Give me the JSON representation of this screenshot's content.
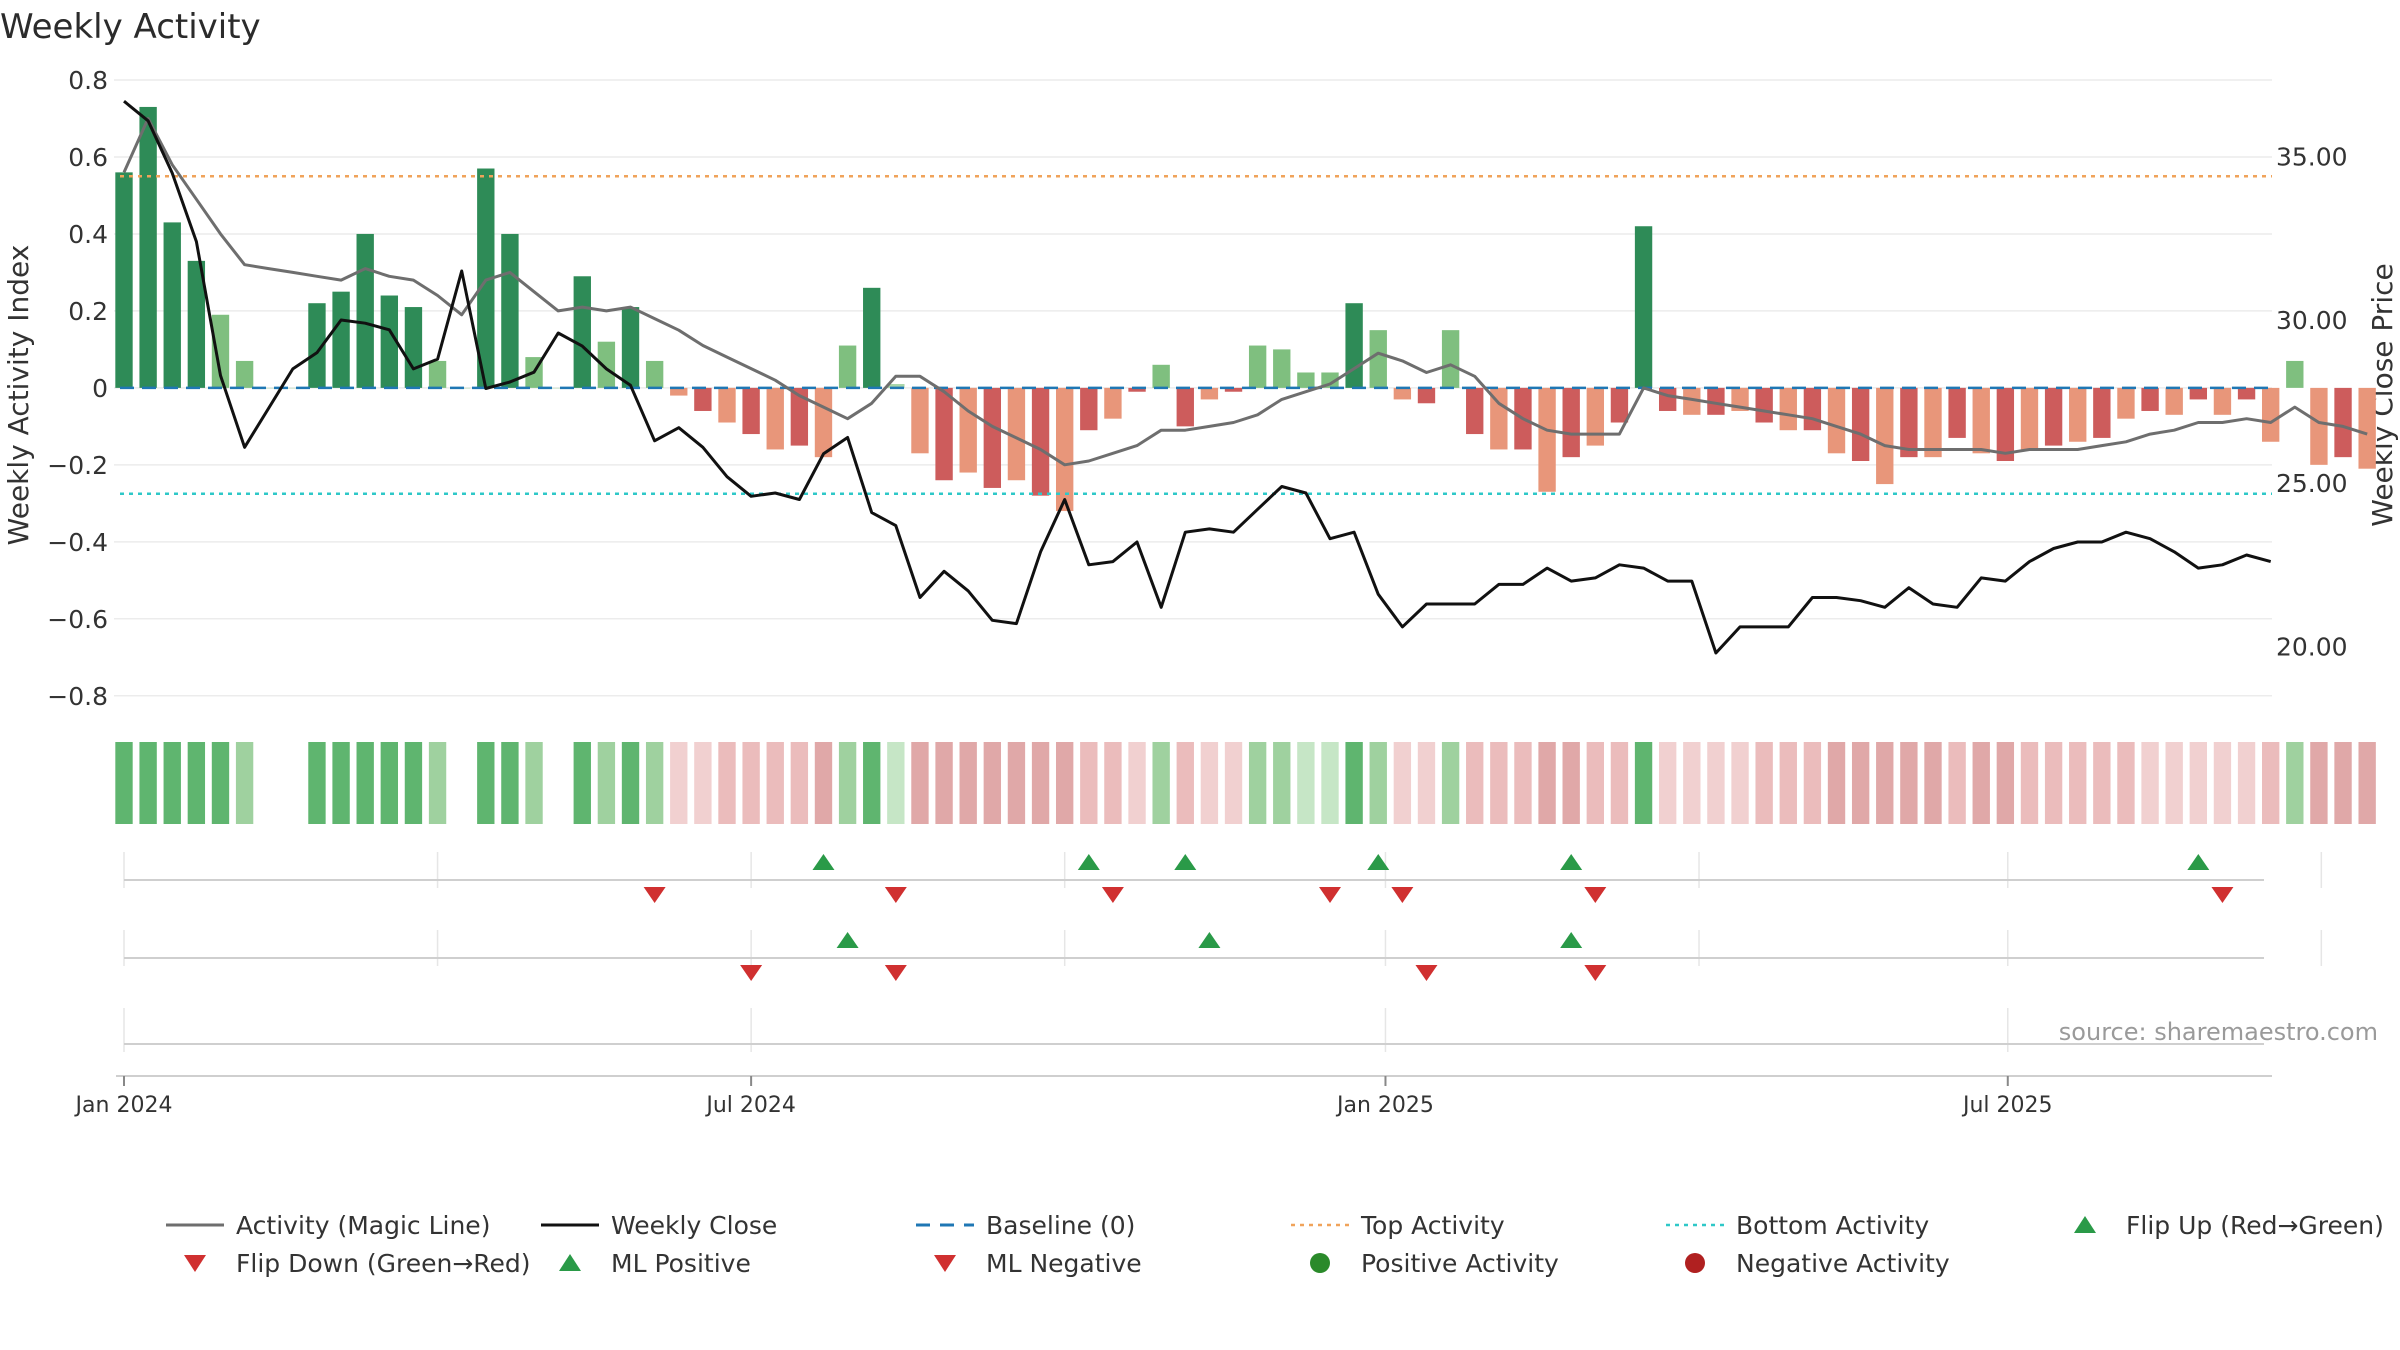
{
  "chart_data": {
    "type": "bar",
    "title": "Weekly Activity",
    "ylabel": "Weekly Activity Index",
    "y2label": "Weekly Close Price",
    "xlabel": "",
    "ylim": [
      -0.85,
      0.8
    ],
    "y2lim": [
      17.9,
      37.35
    ],
    "yticks": [
      0.8,
      0.6,
      0.4,
      0.2,
      0,
      -0.2,
      -0.4,
      -0.6,
      -0.8
    ],
    "ytick_labels": [
      "0.8",
      "0.6",
      "0.4",
      "0.2",
      "0",
      "−0.2",
      "−0.4",
      "−0.6",
      "−0.8"
    ],
    "y2ticks": [
      35,
      30,
      25,
      20
    ],
    "y2tick_labels": [
      "35.00",
      "30.00",
      "25.00",
      "20.00"
    ],
    "x_start": "2024-01-01",
    "xticks": [
      {
        "week": 0,
        "label": "Jan 2024"
      },
      {
        "week": 26,
        "label": "Jul 2024"
      },
      {
        "week": 52.3,
        "label": "Jan 2025"
      },
      {
        "week": 78.1,
        "label": "Jul 2025"
      }
    ],
    "minor_grid_weeks": [
      13,
      39,
      65.3,
      91.1
    ],
    "series": [
      {
        "name": "Activity",
        "type": "bar",
        "values": [
          0.56,
          0.73,
          0.43,
          0.33,
          0.19,
          0.07,
          0,
          0,
          0.22,
          0.25,
          0.4,
          0.24,
          0.21,
          0.07,
          0,
          0.57,
          0.4,
          0.08,
          0,
          0.29,
          0.12,
          0.21,
          0.07,
          -0.02,
          -0.06,
          -0.09,
          -0.12,
          -0.16,
          -0.15,
          -0.18,
          0.11,
          0.26,
          0.01,
          -0.17,
          -0.24,
          -0.22,
          -0.26,
          -0.24,
          -0.28,
          -0.32,
          -0.11,
          -0.08,
          -0.01,
          0.06,
          -0.1,
          -0.03,
          -0.01,
          0.11,
          0.1,
          0.04,
          0.04,
          0.22,
          0.15,
          -0.03,
          -0.04,
          0.15,
          -0.12,
          -0.16,
          -0.16,
          -0.27,
          -0.18,
          -0.15,
          -0.09,
          0.42,
          -0.06,
          -0.07,
          -0.07,
          -0.06,
          -0.09,
          -0.11,
          -0.11,
          -0.17,
          -0.19,
          -0.25,
          -0.18,
          -0.18,
          -0.13,
          -0.17,
          -0.19,
          -0.16,
          -0.15,
          -0.14,
          -0.13,
          -0.08,
          -0.06,
          -0.07,
          -0.03,
          -0.07,
          -0.03,
          -0.14,
          0.07,
          -0.2,
          -0.18,
          -0.21
        ]
      },
      {
        "name": "Activity (Magic Line)",
        "type": "line",
        "values": [
          0.56,
          0.7,
          0.58,
          0.49,
          0.4,
          0.32,
          0.31,
          0.3,
          0.29,
          0.28,
          0.31,
          0.29,
          0.28,
          0.24,
          0.19,
          0.28,
          0.3,
          0.25,
          0.2,
          0.21,
          0.2,
          0.21,
          0.18,
          0.15,
          0.11,
          0.08,
          0.05,
          0.02,
          -0.02,
          -0.05,
          -0.08,
          -0.04,
          0.03,
          0.03,
          -0.01,
          -0.06,
          -0.1,
          -0.13,
          -0.16,
          -0.2,
          -0.19,
          -0.17,
          -0.15,
          -0.11,
          -0.11,
          -0.1,
          -0.09,
          -0.07,
          -0.03,
          -0.01,
          0.01,
          0.05,
          0.09,
          0.07,
          0.04,
          0.06,
          0.03,
          -0.04,
          -0.08,
          -0.11,
          -0.12,
          -0.12,
          -0.12,
          0,
          -0.02,
          -0.03,
          -0.04,
          -0.05,
          -0.06,
          -0.07,
          -0.08,
          -0.1,
          -0.12,
          -0.15,
          -0.16,
          -0.16,
          -0.16,
          -0.16,
          -0.17,
          -0.16,
          -0.16,
          -0.16,
          -0.15,
          -0.14,
          -0.12,
          -0.11,
          -0.09,
          -0.09,
          -0.08,
          -0.09,
          -0.05,
          -0.09,
          -0.1,
          -0.12
        ]
      },
      {
        "name": "Weekly Close",
        "type": "line",
        "axis": "right",
        "values": [
          36.7,
          36.1,
          34.5,
          32.4,
          28.3,
          26.1,
          27.3,
          28.5,
          29.0,
          30.0,
          29.9,
          29.7,
          28.5,
          28.8,
          31.5,
          27.9,
          28.1,
          28.4,
          29.6,
          29.2,
          28.5,
          28.0,
          26.3,
          26.7,
          26.1,
          25.2,
          24.6,
          24.7,
          24.5,
          25.9,
          26.4,
          24.1,
          23.7,
          21.5,
          22.3,
          21.7,
          20.8,
          20.7,
          22.9,
          24.5,
          22.5,
          22.6,
          23.2,
          21.2,
          23.5,
          23.6,
          23.5,
          24.2,
          24.9,
          24.7,
          23.3,
          23.5,
          21.6,
          20.6,
          21.3,
          21.3,
          21.3,
          21.9,
          21.9,
          22.4,
          22.0,
          22.1,
          22.5,
          22.4,
          22.0,
          22.0,
          19.8,
          20.6,
          20.6,
          20.6,
          21.5,
          21.5,
          21.4,
          21.2,
          21.8,
          21.3,
          21.2,
          22.1,
          22.0,
          22.6,
          23.0,
          23.2,
          23.2,
          23.5,
          23.3,
          22.9,
          22.4,
          22.5,
          22.8,
          22.6
        ]
      }
    ],
    "reference_lines": [
      {
        "name": "Baseline (0)",
        "value": 0,
        "color": "#1f77b4",
        "style": "dashed"
      },
      {
        "name": "Top Activity",
        "value": 0.55,
        "color": "#f0a35a",
        "style": "dotted"
      },
      {
        "name": "Bottom Activity",
        "value": -0.275,
        "color": "#2ec8c8",
        "style": "dotted"
      }
    ],
    "flip_events": {
      "up_weeks": [
        29,
        40,
        44,
        52,
        60,
        86
      ],
      "down_weeks": [
        22,
        32,
        41,
        50,
        53,
        61,
        87
      ]
    },
    "ml_events": {
      "positive_weeks": [
        30,
        45,
        60
      ],
      "negative_weeks": [
        26,
        32,
        54,
        61
      ]
    },
    "annotation": "source: sharemaestro.com",
    "legend": {
      "position": "bottom",
      "entries": [
        {
          "label": "Activity (Magic Line)",
          "marker": "line",
          "color": "#6e6e6e"
        },
        {
          "label": "Weekly Close",
          "marker": "line",
          "color": "#111111"
        },
        {
          "label": "Baseline (0)",
          "marker": "dash",
          "color": "#1f77b4"
        },
        {
          "label": "Top Activity",
          "marker": "dot-line",
          "color": "#f0a35a"
        },
        {
          "label": "Bottom Activity",
          "marker": "dot-line",
          "color": "#2ec8c8"
        },
        {
          "label": "Flip Up (Red→Green)",
          "marker": "triangle-up",
          "color": "#2a9a48"
        },
        {
          "label": "Flip Down (Green→Red)",
          "marker": "triangle-down",
          "color": "#d03030"
        },
        {
          "label": "ML Positive",
          "marker": "triangle-up",
          "color": "#2a9a48"
        },
        {
          "label": "ML Negative",
          "marker": "triangle-down",
          "color": "#d03030"
        },
        {
          "label": "Positive Activity",
          "marker": "circle",
          "color": "#2a8a2a"
        },
        {
          "label": "Negative Activity",
          "marker": "circle",
          "color": "#b02020"
        }
      ]
    }
  }
}
